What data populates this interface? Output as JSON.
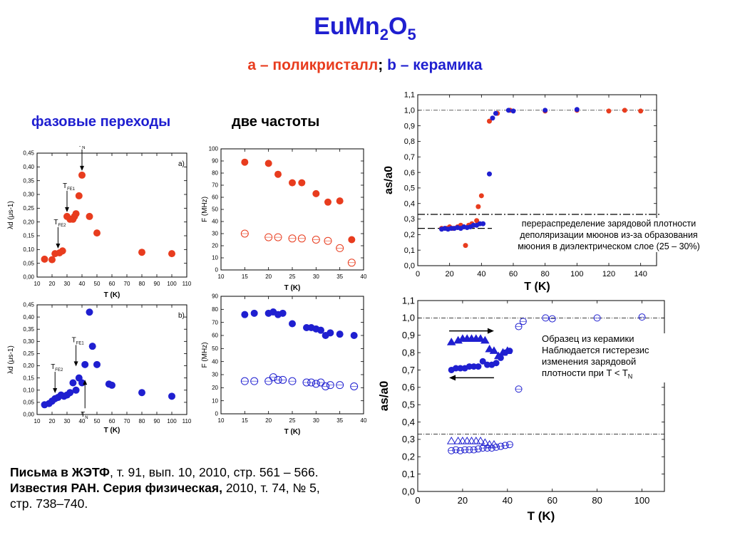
{
  "header": {
    "title_main": "EuMn",
    "title_sub1": "2",
    "title_o": "O",
    "title_sub2": "5",
    "subtitle_a": "a – поликристалл",
    "subtitle_sep": ";",
    "subtitle_b": "b – керамика"
  },
  "headings": {
    "phase": "фазовые переходы",
    "freq": "две частоты"
  },
  "reference": {
    "line1_bold": "Письма в ЖЭТФ",
    "line1_rest": ", т. 91, вып. 10, 2010, стр. 561 – 566.",
    "line2_bold": "Известия РАН. Серия физическая,",
    "line2_rest": " 2010, т. 74, № 5,",
    "line3": "стр. 738–740."
  },
  "colors": {
    "red": "#e83c1e",
    "blue": "#1f1fd0",
    "navy": "#1f1fd0"
  },
  "chart_data": [
    {
      "id": "lambda_a",
      "type": "scatter",
      "panel_label": "a",
      "xlabel": "T (K)",
      "ylabel": "λd (μs-1)",
      "xlim": [
        10,
        110
      ],
      "ylim": [
        0,
        0.45
      ],
      "xticks": [
        10,
        20,
        30,
        40,
        50,
        60,
        70,
        80,
        90,
        100,
        110
      ],
      "yticks": [
        0,
        0.05,
        0.1,
        0.15,
        0.2,
        0.25,
        0.3,
        0.35,
        0.4,
        0.45
      ],
      "series": [
        {
          "color": "red",
          "marker": "filled-circle",
          "x": [
            15,
            20,
            22,
            25,
            27,
            30,
            32,
            34,
            35,
            36,
            38,
            40,
            45,
            50,
            80,
            100
          ],
          "y": [
            0.065,
            0.063,
            0.085,
            0.088,
            0.095,
            0.22,
            0.21,
            0.21,
            0.22,
            0.23,
            0.295,
            0.37,
            0.22,
            0.16,
            0.09,
            0.085
          ]
        }
      ],
      "annotations": [
        {
          "label": "T",
          "sub": "N",
          "x": 40,
          "y": 0.37
        },
        {
          "label": "T",
          "sub": "FE1",
          "x": 30,
          "y": 0.22
        },
        {
          "label": "T",
          "sub": "FE2",
          "x": 24,
          "y": 0.088
        }
      ]
    },
    {
      "id": "lambda_b",
      "type": "scatter",
      "panel_label": "b",
      "xlabel": "T (K)",
      "ylabel": "λd (μs-1)",
      "xlim": [
        10,
        110
      ],
      "ylim": [
        0,
        0.45
      ],
      "xticks": [
        10,
        20,
        30,
        40,
        50,
        60,
        70,
        80,
        90,
        100,
        110
      ],
      "yticks": [
        0,
        0.05,
        0.1,
        0.15,
        0.2,
        0.25,
        0.3,
        0.35,
        0.4,
        0.45
      ],
      "series": [
        {
          "color": "blue",
          "marker": "filled-circle",
          "x": [
            15,
            18,
            20,
            22,
            24,
            26,
            28,
            30,
            32,
            34,
            36,
            38,
            40,
            42,
            45,
            47,
            50,
            58,
            60,
            80,
            100
          ],
          "y": [
            0.04,
            0.045,
            0.055,
            0.065,
            0.07,
            0.08,
            0.075,
            0.08,
            0.09,
            0.13,
            0.1,
            0.15,
            0.13,
            0.205,
            0.42,
            0.28,
            0.205,
            0.125,
            0.12,
            0.09,
            0.075
          ]
        }
      ],
      "annotations": [
        {
          "label": "T",
          "sub": "FE1",
          "x": 36,
          "y": 0.18
        },
        {
          "label": "T",
          "sub": "FE2",
          "x": 22,
          "y": 0.07
        },
        {
          "label": "T",
          "sub": "N",
          "x": 42,
          "y": 0.16
        }
      ]
    },
    {
      "id": "freq_a",
      "type": "scatter",
      "xlabel": "T (K)",
      "ylabel": "F (MHz)",
      "xlim": [
        10,
        40
      ],
      "ylim": [
        0,
        100
      ],
      "xticks": [
        10,
        15,
        20,
        25,
        30,
        35,
        40
      ],
      "yticks": [
        0,
        10,
        20,
        30,
        40,
        50,
        60,
        70,
        80,
        90,
        100
      ],
      "series": [
        {
          "color": "red",
          "marker": "filled-circle",
          "x": [
            15,
            20,
            22,
            25,
            27,
            30,
            32.5,
            35,
            37.5
          ],
          "y": [
            89,
            88,
            79,
            72,
            72,
            63,
            56,
            57,
            25
          ]
        },
        {
          "color": "red",
          "marker": "open-circle",
          "x": [
            15,
            20,
            22,
            25,
            27,
            30,
            32.5,
            35,
            37.5
          ],
          "y": [
            30,
            27,
            27,
            26,
            26,
            25,
            24,
            18,
            6
          ]
        }
      ]
    },
    {
      "id": "freq_b",
      "type": "scatter",
      "xlabel": "T (K)",
      "ylabel": "F (MHz)",
      "xlim": [
        10,
        40
      ],
      "ylim": [
        0,
        90
      ],
      "xticks": [
        10,
        15,
        20,
        25,
        30,
        35,
        40
      ],
      "yticks": [
        0,
        10,
        20,
        30,
        40,
        50,
        60,
        70,
        80,
        90
      ],
      "series": [
        {
          "color": "blue",
          "marker": "filled-circle",
          "x": [
            15,
            17,
            20,
            21,
            22,
            23,
            25,
            28,
            29,
            30,
            31,
            32,
            33,
            35,
            38
          ],
          "y": [
            76,
            77,
            77,
            78,
            76,
            77,
            69,
            66,
            66,
            65,
            64,
            60,
            62,
            61,
            60
          ]
        },
        {
          "color": "blue",
          "marker": "open-circle",
          "x": [
            15,
            17,
            20,
            21,
            22,
            23,
            25,
            28,
            29,
            30,
            31,
            32,
            33,
            35,
            38
          ],
          "y": [
            25,
            25,
            25,
            28,
            26,
            26,
            25,
            24,
            24,
            23,
            24,
            21,
            22,
            22,
            21
          ]
        }
      ]
    },
    {
      "id": "as_a",
      "type": "scatter",
      "xlabel": "T (K)",
      "ylabel": "as/a0",
      "xlim": [
        0,
        150
      ],
      "ylim": [
        0,
        1.1
      ],
      "xticks": [
        0,
        20,
        40,
        60,
        80,
        100,
        120,
        140
      ],
      "yticks": [
        0,
        0.1,
        0.2,
        0.3,
        0.4,
        0.5,
        0.6,
        0.7,
        0.8,
        0.9,
        1.0,
        1.1
      ],
      "ytick_labels": [
        "0,0",
        "0,1",
        "0,2",
        "0,3",
        "0,4",
        "0,5",
        "0,6",
        "0,7",
        "0,8",
        "0,9",
        "1,0",
        "1,1"
      ],
      "series": [
        {
          "color": "red",
          "marker": "filled-circle",
          "x": [
            15,
            18,
            20,
            22,
            25,
            27,
            29,
            30,
            32,
            34,
            35,
            37,
            38,
            40,
            45,
            50,
            58,
            80,
            100,
            120,
            130,
            140
          ],
          "y": [
            0.24,
            0.24,
            0.25,
            0.24,
            0.25,
            0.26,
            0.25,
            0.13,
            0.26,
            0.27,
            0.26,
            0.29,
            0.38,
            0.45,
            0.93,
            0.98,
            1.0,
            0.995,
            1.0,
            0.995,
            1.0,
            0.995
          ]
        },
        {
          "color": "blue",
          "marker": "filled-circle",
          "x": [
            15,
            17,
            19,
            21,
            23,
            25,
            27,
            29,
            31,
            33,
            35,
            37,
            39,
            41,
            45,
            47,
            49,
            57,
            60,
            80,
            100
          ],
          "y": [
            0.235,
            0.24,
            0.235,
            0.24,
            0.24,
            0.245,
            0.24,
            0.25,
            0.245,
            0.25,
            0.26,
            0.26,
            0.27,
            0.27,
            0.59,
            0.95,
            0.98,
            1.0,
            0.995,
            1.0,
            1.005
          ]
        }
      ],
      "reference_lines": [
        1.0,
        0.33,
        0.24
      ],
      "note": [
        "перераспределение зарядовой плотности",
        "деполяризации мюонов из-за образования",
        "мюония в диэлектрическом слое (25 – 30%)"
      ]
    },
    {
      "id": "as_b",
      "type": "scatter",
      "xlabel": "T (K)",
      "ylabel": "as/a0",
      "xlim": [
        0,
        110
      ],
      "ylim": [
        0,
        1.1
      ],
      "xticks": [
        0,
        20,
        40,
        60,
        80,
        100
      ],
      "yticks": [
        0,
        0.1,
        0.2,
        0.3,
        0.4,
        0.5,
        0.6,
        0.7,
        0.8,
        0.9,
        1.0,
        1.1
      ],
      "ytick_labels": [
        "0,0",
        "0,1",
        "0,2",
        "0,3",
        "0,4",
        "0,5",
        "0,6",
        "0,7",
        "0,8",
        "0,9",
        "1,0",
        "1,1"
      ],
      "series": [
        {
          "color": "navy",
          "marker": "filled-triangle",
          "x": [
            15,
            18,
            20,
            22,
            24,
            26,
            28,
            30,
            32,
            34,
            36,
            38,
            40
          ],
          "y": [
            0.86,
            0.87,
            0.88,
            0.88,
            0.88,
            0.88,
            0.88,
            0.87,
            0.82,
            0.81,
            0.78,
            0.8,
            0.81
          ]
        },
        {
          "color": "navy",
          "marker": "filled-circle",
          "x": [
            15,
            17,
            19,
            21,
            23,
            25,
            27,
            29,
            31,
            33,
            35,
            37,
            39,
            41
          ],
          "y": [
            0.7,
            0.71,
            0.71,
            0.71,
            0.72,
            0.72,
            0.72,
            0.75,
            0.73,
            0.73,
            0.74,
            0.77,
            0.8,
            0.81
          ]
        },
        {
          "color": "navy",
          "marker": "open-triangle",
          "x": [
            15,
            18,
            20,
            22,
            24,
            26,
            28,
            30,
            32,
            34
          ],
          "y": [
            0.29,
            0.29,
            0.29,
            0.29,
            0.29,
            0.29,
            0.29,
            0.28,
            0.27,
            0.27
          ]
        },
        {
          "color": "navy",
          "marker": "open-circle",
          "x": [
            15,
            17,
            19,
            21,
            23,
            25,
            27,
            29,
            31,
            33,
            35,
            37,
            39,
            41,
            45,
            47,
            57,
            60,
            80,
            100
          ],
          "y": [
            0.235,
            0.24,
            0.235,
            0.24,
            0.24,
            0.24,
            0.245,
            0.25,
            0.25,
            0.25,
            0.255,
            0.26,
            0.265,
            0.27,
            0.95,
            0.98,
            1.0,
            0.995,
            1.0,
            1.005
          ]
        },
        {
          "color": "navy",
          "marker": "open-circle",
          "x": [
            45
          ],
          "y": [
            0.59
          ]
        }
      ],
      "reference_lines": [
        1.0,
        0.33
      ],
      "note": [
        "Образец из керамики",
        "Наблюдается гистерезис",
        "изменения зарядовой",
        "плотности при T < T"
      ],
      "note_sub": "N"
    }
  ]
}
